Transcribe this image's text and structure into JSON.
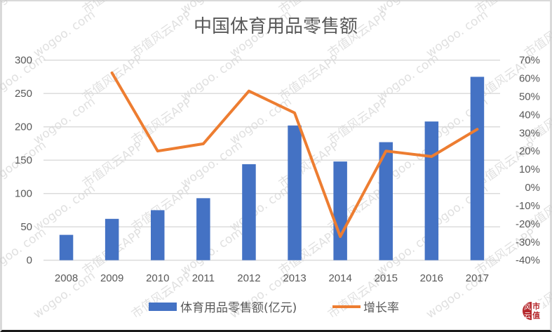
{
  "chart_data": {
    "type": "bar",
    "combo": "bar+line (dual axis)",
    "title": "中国体育用品零售额",
    "categories": [
      "2008",
      "2009",
      "2010",
      "2011",
      "2012",
      "2013",
      "2014",
      "2015",
      "2016",
      "2017"
    ],
    "series": [
      {
        "name": "体育用品零售额(亿元)",
        "type": "bar",
        "axis": "left",
        "color": "#4472C4",
        "values": [
          38,
          62,
          75,
          93,
          144,
          202,
          148,
          177,
          208,
          275
        ]
      },
      {
        "name": "增长率",
        "type": "line",
        "axis": "right",
        "color": "#ED7D31",
        "values": [
          null,
          63,
          20,
          24,
          53,
          41,
          -27,
          20,
          17,
          32
        ]
      }
    ],
    "xlabel": "",
    "ylabel_left": "",
    "ylabel_right": "",
    "ylim_left": [
      0,
      300
    ],
    "yticks_left": [
      "0",
      "50",
      "100",
      "150",
      "200",
      "250",
      "300"
    ],
    "ylim_right": [
      -40,
      70
    ],
    "yticks_right": [
      "-40%",
      "-30%",
      "-20%",
      "-10%",
      "0%",
      "10%",
      "20%",
      "30%",
      "40%",
      "50%",
      "60%",
      "70%"
    ],
    "grid": true,
    "legend_position": "bottom"
  },
  "legend": {
    "bar_label": "体育用品零售额(亿元)",
    "line_label": "增长率"
  },
  "watermark": {
    "site": "wogoo. com",
    "app": "市值风云APP"
  },
  "logo": {
    "left_chars": "风云",
    "right_top": "市",
    "right_bottom": "值"
  }
}
